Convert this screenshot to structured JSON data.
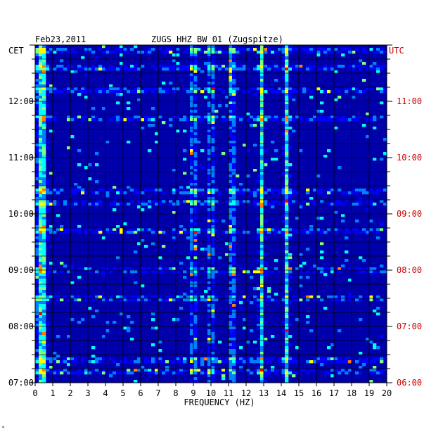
{
  "header": {
    "date": "Feb23,2011",
    "station": "ZUGS HHZ BW 01 (Zugspitze)",
    "left_zone": "CET",
    "right_zone": "UTC",
    "corner_mark": "*"
  },
  "colors": {
    "background": "#0000aa",
    "left_time_labels": "#000000",
    "right_time_labels": "#cc0000",
    "palette": [
      "#00008b",
      "#0000ff",
      "#0080ff",
      "#00ffff",
      "#80ff80",
      "#ffff00",
      "#ff8000",
      "#ff0000"
    ]
  },
  "chart_data": {
    "type": "heatmap",
    "title": "ZUGS HHZ BW 01 (Zugspitze)",
    "subtitle": "Feb23,2011",
    "xlabel": "FREQUENCY (HZ)",
    "ylabel": "",
    "xlim": [
      0,
      20
    ],
    "x_ticks": [
      "0",
      "1",
      "2",
      "3",
      "4",
      "5",
      "6",
      "7",
      "8",
      "9",
      "10",
      "11",
      "12",
      "13",
      "14",
      "15",
      "16",
      "17",
      "18",
      "19",
      "20"
    ],
    "y_range_hours": [
      7.0,
      13.0
    ],
    "left_time_ticks": [
      "12:00",
      "11:00",
      "10:00",
      "09:00",
      "08:00",
      "07:00"
    ],
    "left_time_values": [
      12,
      11,
      10,
      9,
      8,
      7
    ],
    "right_time_ticks": [
      "11:00",
      "10:00",
      "09:00",
      "08:00",
      "07:00",
      "06:00"
    ],
    "grid": true,
    "persistent_peaks_hz": [
      0.4,
      9.0,
      10.0,
      11.2,
      12.9,
      14.3
    ],
    "strong_rows_hours": [
      12.9,
      12.6,
      12.2,
      11.7,
      10.4,
      10.2,
      9.7,
      9.0,
      8.5,
      7.4,
      7.2
    ]
  }
}
